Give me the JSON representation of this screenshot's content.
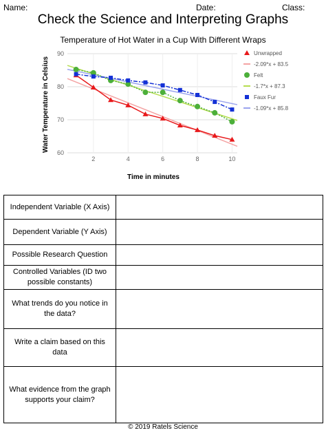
{
  "header": {
    "name": "Name:",
    "date": "Date:",
    "class": "Class:",
    "title": "Check the Science and Interpreting Graphs"
  },
  "chart_data": {
    "type": "line",
    "title": "Temperature of Hot Water in a Cup With Different Wraps",
    "x_label": "Time in minutes",
    "y_label": "Water Temperature in Celsius",
    "x": [
      1,
      2,
      3,
      4,
      5,
      6,
      7,
      8,
      9,
      10
    ],
    "xlim": [
      0.5,
      10.3
    ],
    "xticks": [
      2,
      4,
      6,
      8,
      10
    ],
    "ylim": [
      60,
      90
    ],
    "yticks": [
      60,
      70,
      80,
      90
    ],
    "grid": true,
    "series": [
      {
        "name": "Unwrapped",
        "color": "#e8191b",
        "marker": "triangle",
        "line": "solid",
        "values": [
          83.5,
          79.8,
          76,
          74.4,
          71.7,
          70.4,
          68.3,
          66.9,
          65.2,
          64
        ],
        "trendline": {
          "name": "-2.09*x + 83.5",
          "color": "#f4a3a3",
          "slope": -2.09,
          "intercept": 83.5
        }
      },
      {
        "name": "Felt",
        "color": "#4caf3a",
        "marker": "circle",
        "line": "dotted",
        "values": [
          85.2,
          84.2,
          81.9,
          80.8,
          78.3,
          78.3,
          75.8,
          74,
          72.1,
          69.4
        ],
        "trendline": {
          "name": "-1.7*x + 87.3",
          "color": "#b5dd4e",
          "slope": -1.7,
          "intercept": 87.3
        }
      },
      {
        "name": "Faux Fur",
        "color": "#1431d6",
        "marker": "square",
        "line": "dashdot",
        "values": [
          83.8,
          83.1,
          82.7,
          81.9,
          81.3,
          80.4,
          79,
          77.5,
          75.4,
          73.1
        ],
        "trendline": {
          "name": "-1.09*x + 85.8",
          "color": "#9aa3ee",
          "slope": -1.09,
          "intercept": 85.8
        }
      }
    ]
  },
  "table": {
    "rows": [
      "Independent Variable (X Axis)",
      "Dependent Variable (Y Axis)",
      "Possible Research Question",
      "Controlled Variables (ID two possible constants)",
      "What trends do you notice in the data?",
      "Write a claim based on this data",
      "What evidence from the graph supports your claim?"
    ]
  },
  "footer": "© 2019 Ratels Science"
}
